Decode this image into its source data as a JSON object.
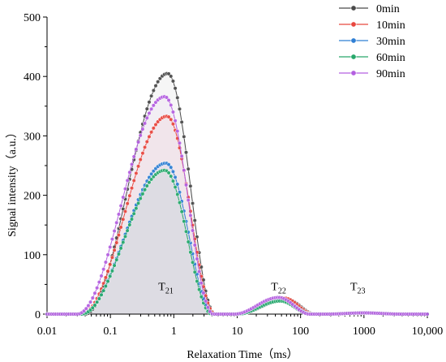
{
  "chart_data": {
    "type": "scatter",
    "xlabel": "Relaxation Time（ms）",
    "ylabel": "Signal intensity（a.u.）",
    "xscale": "log",
    "xlim": [
      0.01,
      10000
    ],
    "ylim": [
      0,
      500
    ],
    "xticks": [
      0.01,
      0.1,
      1,
      10,
      100,
      1000,
      10000
    ],
    "xtick_labels": [
      "0.01",
      "0.1",
      "1",
      "10",
      "100",
      "1000",
      "10,000"
    ],
    "yticks": [
      0,
      100,
      200,
      300,
      400,
      500
    ],
    "ytick_labels": [
      "0",
      "100",
      "200",
      "300",
      "400",
      "500"
    ],
    "grid": false,
    "legend_position": "top-right",
    "annotations": [
      {
        "base": "T",
        "sub": "21",
        "x": 0.75,
        "y": 40
      },
      {
        "base": "T",
        "sub": "22",
        "x": 45,
        "y": 40
      },
      {
        "base": "T",
        "sub": "23",
        "x": 800,
        "y": 40
      }
    ],
    "series": [
      {
        "name": "0min",
        "color": "#4a4a4a",
        "peaks": [
          {
            "center": 0.8,
            "amp": 405,
            "lo": 0.04,
            "hi": 4.5
          },
          {
            "center": 60,
            "amp": 25,
            "lo": 10,
            "hi": 170
          },
          {
            "center": 1000,
            "amp": 2,
            "lo": 250,
            "hi": 4000
          }
        ]
      },
      {
        "name": "10min",
        "color": "#e8473f",
        "peaks": [
          {
            "center": 0.78,
            "amp": 333,
            "lo": 0.035,
            "hi": 4.5
          },
          {
            "center": 55,
            "amp": 27,
            "lo": 10,
            "hi": 160
          },
          {
            "center": 1000,
            "amp": 2,
            "lo": 250,
            "hi": 4000
          }
        ]
      },
      {
        "name": "30min",
        "color": "#2f7fd4",
        "peaks": [
          {
            "center": 0.75,
            "amp": 254,
            "lo": 0.035,
            "hi": 4.2
          },
          {
            "center": 50,
            "amp": 23,
            "lo": 10,
            "hi": 150
          },
          {
            "center": 1000,
            "amp": 2,
            "lo": 250,
            "hi": 4000
          }
        ]
      },
      {
        "name": "60min",
        "color": "#27a86b",
        "peaks": [
          {
            "center": 0.72,
            "amp": 242,
            "lo": 0.035,
            "hi": 4.0
          },
          {
            "center": 48,
            "amp": 22,
            "lo": 10,
            "hi": 140
          },
          {
            "center": 1000,
            "amp": 2,
            "lo": 250,
            "hi": 4000
          }
        ]
      },
      {
        "name": "90min",
        "color": "#b45fe0",
        "peaks": [
          {
            "center": 0.72,
            "amp": 366,
            "lo": 0.03,
            "hi": 4.2
          },
          {
            "center": 45,
            "amp": 28,
            "lo": 9,
            "hi": 140
          },
          {
            "center": 1000,
            "amp": 2,
            "lo": 250,
            "hi": 4000
          }
        ]
      }
    ]
  }
}
